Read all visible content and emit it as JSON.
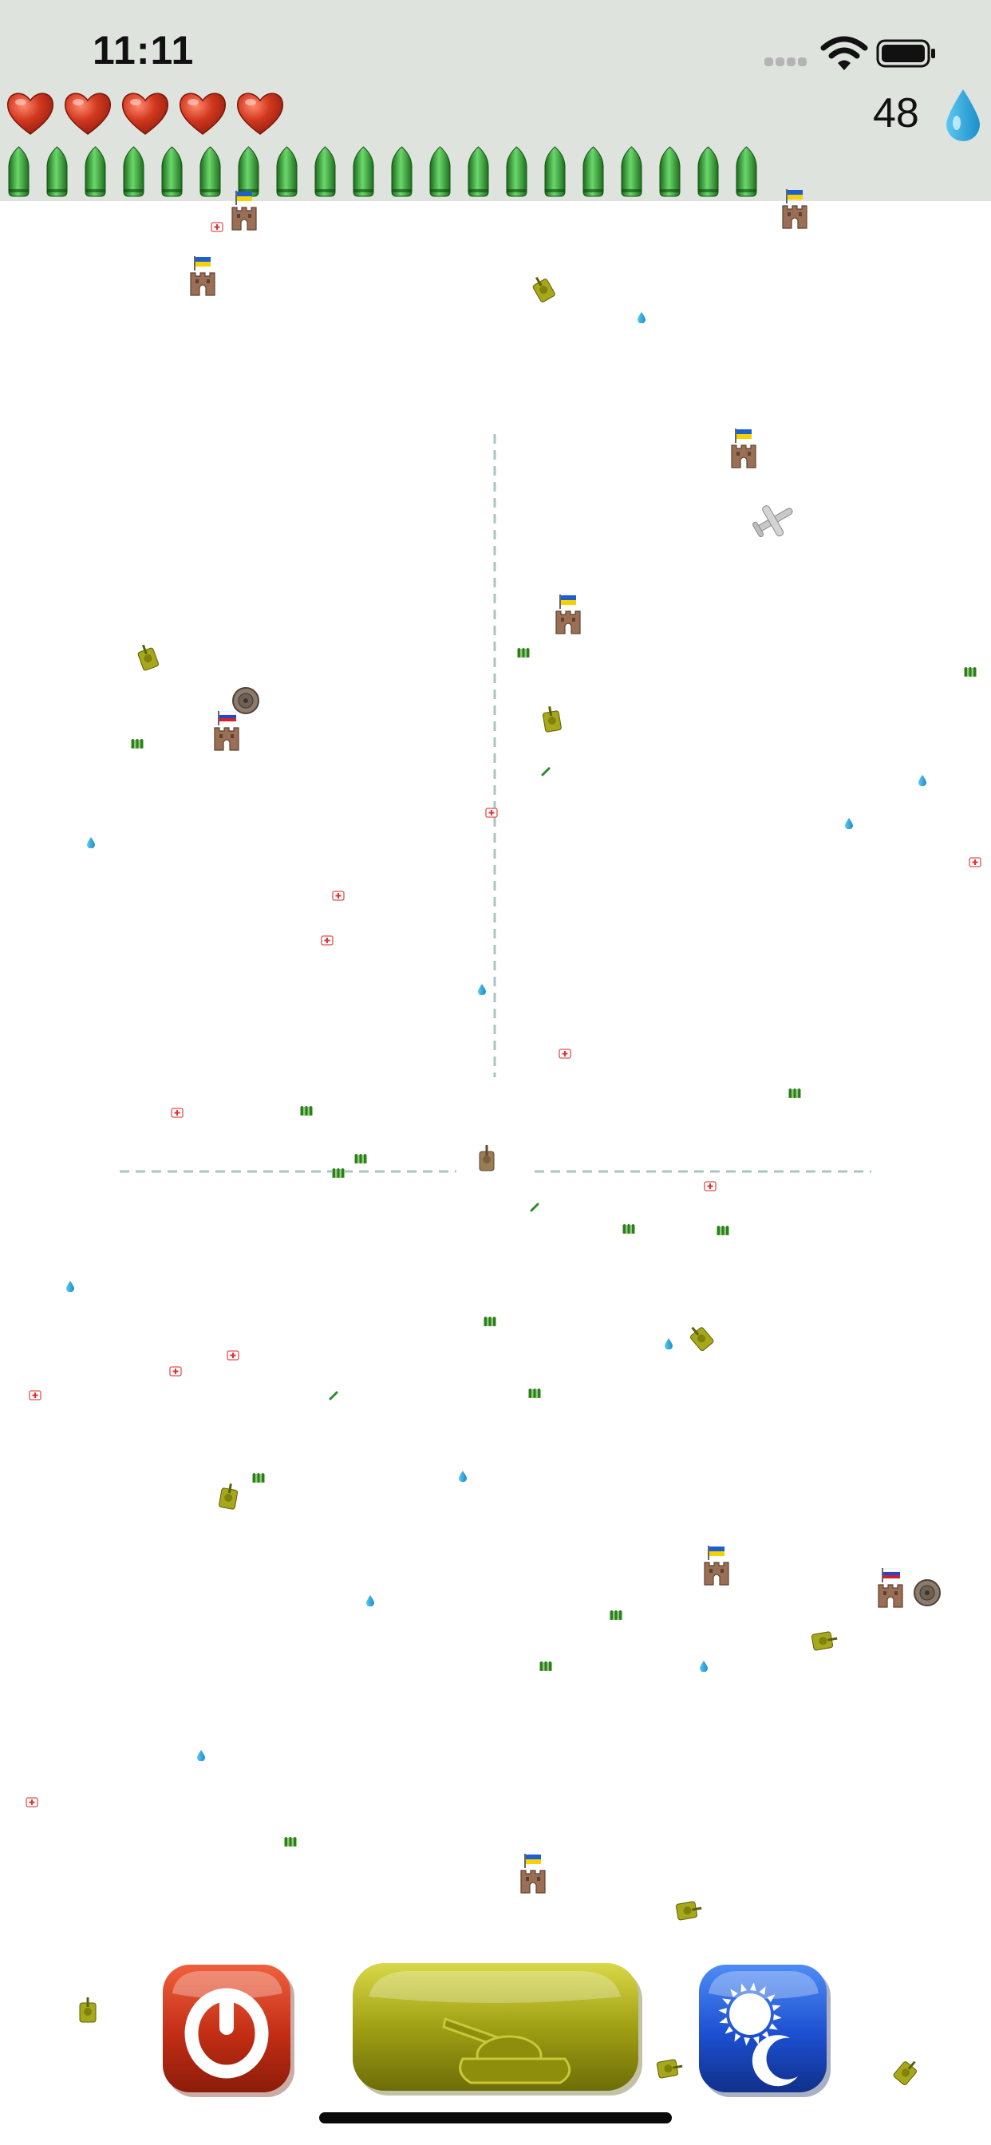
{
  "status_bar": {
    "time": "11:11"
  },
  "hud": {
    "lives": 5,
    "ammo": 20,
    "water": "48",
    "colors": {
      "heart": "#c0392b",
      "shell": "#2e8b2e",
      "water": "#29a8dc",
      "hud_bg": "#dfe3dd"
    }
  },
  "field": {
    "crosshair": {
      "color": "#a9c4c4",
      "style": "dashed"
    },
    "sprites": [
      {
        "type": "fortress-ukraine"
      },
      {
        "type": "fortress-ukraine"
      },
      {
        "type": "fortress-ukraine"
      },
      {
        "type": "fortress-ukraine"
      },
      {
        "type": "fortress-ukraine"
      },
      {
        "type": "fortress-ukraine"
      },
      {
        "type": "fortress-ukraine"
      },
      {
        "type": "fortress-russia"
      },
      {
        "type": "fortress-russia"
      },
      {
        "type": "enemy-plane"
      },
      {
        "type": "land-mine"
      },
      {
        "type": "land-mine"
      },
      {
        "type": "player-tank"
      }
    ]
  },
  "controls": {
    "power_button": {
      "icon": "power-icon",
      "color": "#c8301a"
    },
    "fire_button": {
      "icon": "tank-icon",
      "color": "#9a9a12"
    },
    "night_mode_button": {
      "icon": "sun-moon-icon",
      "color": "#1c4fd0"
    }
  }
}
